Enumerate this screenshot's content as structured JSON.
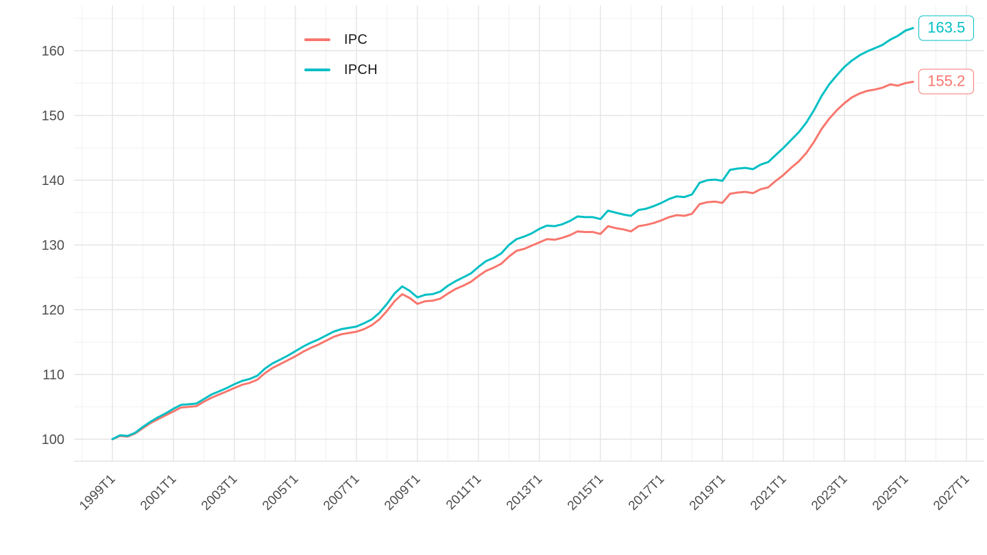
{
  "page": {
    "background_color": "#FFFFFF"
  },
  "chart_data": {
    "type": "line",
    "title": "",
    "xlabel": "",
    "ylabel": "",
    "grid": "on",
    "frequency": "quarterly",
    "x_axis": {
      "tick_labels": [
        "1999T1",
        "2001T1",
        "2003T1",
        "2005T1",
        "2007T1",
        "2009T1",
        "2011T1",
        "2013T1",
        "2015T1",
        "2017T1",
        "2019T1",
        "2021T1",
        "2023T1",
        "2025T1",
        "2027T1"
      ],
      "minor_tick_years": [
        1998,
        2000,
        2002,
        2004,
        2006,
        2008,
        2010,
        2012,
        2014,
        2016,
        2018,
        2020,
        2022,
        2024,
        2026
      ],
      "range": [
        "1998",
        "2027"
      ],
      "label_angle_degrees": 45
    },
    "y_axis": {
      "tick_labels": [
        "100",
        "110",
        "120",
        "130",
        "140",
        "150",
        "160"
      ],
      "tick_values": [
        100,
        110,
        120,
        130,
        140,
        150,
        160
      ],
      "minor_tick_values": [
        105,
        115,
        125,
        135,
        145,
        155,
        165
      ],
      "range": [
        97,
        167
      ]
    },
    "legend": {
      "position": "top-inset",
      "items": [
        {
          "label": "IPC",
          "color": "#F8766D"
        },
        {
          "label": "IPCH",
          "color": "#00BFC4"
        }
      ]
    },
    "axis_text_color": "#4D4D4D",
    "series": [
      {
        "name": "IPC",
        "color": "#F8766D",
        "end_label": "155.2",
        "start": "1999T1",
        "end": "2025T2",
        "values": [
          100.0,
          100.5,
          100.4,
          100.9,
          101.7,
          102.5,
          103.1,
          103.7,
          104.3,
          104.9,
          105.0,
          105.1,
          105.8,
          106.4,
          106.9,
          107.4,
          107.9,
          108.4,
          108.7,
          109.2,
          110.2,
          111.0,
          111.6,
          112.2,
          112.8,
          113.5,
          114.1,
          114.6,
          115.2,
          115.8,
          116.2,
          116.4,
          116.6,
          117.0,
          117.6,
          118.5,
          119.8,
          121.3,
          122.4,
          121.8,
          120.9,
          121.3,
          121.4,
          121.7,
          122.5,
          123.2,
          123.7,
          124.3,
          125.2,
          126.0,
          126.5,
          127.1,
          128.2,
          129.1,
          129.4,
          129.9,
          130.4,
          130.9,
          130.8,
          131.1,
          131.5,
          132.1,
          132.0,
          132.0,
          131.7,
          132.9,
          132.6,
          132.4,
          132.1,
          132.9,
          133.1,
          133.4,
          133.8,
          134.3,
          134.6,
          134.5,
          134.8,
          136.3,
          136.6,
          136.7,
          136.5,
          137.9,
          138.1,
          138.2,
          138.0,
          138.6,
          138.9,
          139.9,
          140.8,
          141.9,
          142.9,
          144.2,
          145.9,
          147.9,
          149.5,
          150.8,
          151.9,
          152.8,
          153.4,
          153.8,
          154.0,
          154.3,
          154.8,
          154.6,
          155.0,
          155.2
        ]
      },
      {
        "name": "IPCH",
        "color": "#00BFC4",
        "end_label": "163.5",
        "start": "1999T1",
        "end": "2025T2",
        "values": [
          100.0,
          100.6,
          100.5,
          101.0,
          101.9,
          102.7,
          103.4,
          104.0,
          104.7,
          105.3,
          105.4,
          105.5,
          106.2,
          106.9,
          107.4,
          107.9,
          108.5,
          109.0,
          109.3,
          109.8,
          110.9,
          111.7,
          112.3,
          112.9,
          113.6,
          114.3,
          114.9,
          115.4,
          116.0,
          116.6,
          117.0,
          117.2,
          117.4,
          117.9,
          118.5,
          119.5,
          120.9,
          122.5,
          123.6,
          122.9,
          121.9,
          122.3,
          122.4,
          122.8,
          123.7,
          124.4,
          125.0,
          125.6,
          126.6,
          127.5,
          128.0,
          128.7,
          130.0,
          130.9,
          131.3,
          131.8,
          132.5,
          133.0,
          132.9,
          133.2,
          133.7,
          134.4,
          134.3,
          134.3,
          134.0,
          135.3,
          135.0,
          134.7,
          134.5,
          135.4,
          135.6,
          136.0,
          136.5,
          137.1,
          137.5,
          137.4,
          137.8,
          139.6,
          140.0,
          140.1,
          139.9,
          141.6,
          141.8,
          141.9,
          141.7,
          142.4,
          142.8,
          143.9,
          145.0,
          146.2,
          147.4,
          148.9,
          150.8,
          153.0,
          154.8,
          156.2,
          157.5,
          158.5,
          159.3,
          159.9,
          160.4,
          160.9,
          161.7,
          162.3,
          163.1,
          163.5
        ]
      }
    ]
  }
}
